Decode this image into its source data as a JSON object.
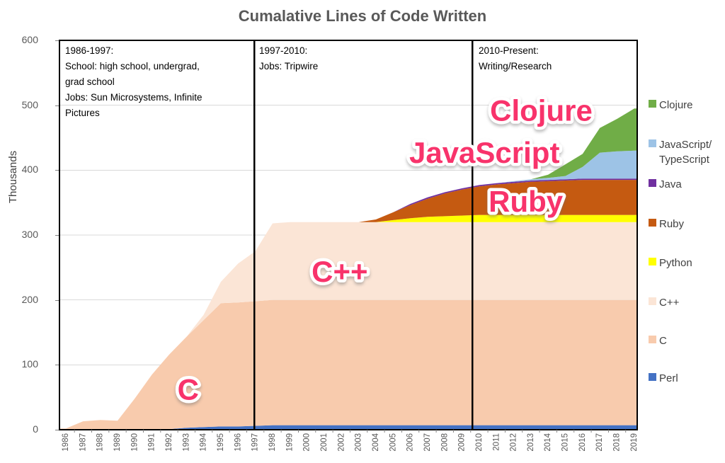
{
  "title": "Cumalative Lines of Code Written",
  "accent_pink": "#F8336B",
  "chart_data": {
    "type": "area",
    "stacked": true,
    "title": "Cumalative Lines of Code Written",
    "ylabel": "Thousands",
    "ylim": [
      0,
      600
    ],
    "y_ticks": [
      0,
      100,
      200,
      300,
      400,
      500,
      600
    ],
    "grid": "horizontal",
    "legend_position": "right",
    "x": [
      "1986",
      "1987",
      "1988",
      "1989",
      "1990",
      "1991",
      "1992",
      "1993",
      "1994",
      "1995",
      "1996",
      "1997",
      "1998",
      "1999",
      "2000",
      "2001",
      "2002",
      "2003",
      "2004",
      "2005",
      "2006",
      "2007",
      "2008",
      "2009",
      "2010",
      "2011",
      "2012",
      "2013",
      "2014",
      "2015",
      "2016",
      "2017",
      "2018",
      "2019"
    ],
    "series": [
      {
        "name": "Perl",
        "color": "#4472C4",
        "values": [
          0,
          0,
          0,
          0,
          0,
          0,
          1,
          3,
          4,
          5,
          5,
          6,
          7,
          7,
          7,
          7,
          7,
          7,
          7,
          7,
          7,
          7,
          7,
          7,
          7,
          7,
          7,
          7,
          7,
          7,
          7,
          7,
          7,
          7
        ]
      },
      {
        "name": "C",
        "color": "#F8CBAD",
        "values": [
          2,
          13,
          15,
          14,
          48,
          85,
          115,
          140,
          165,
          190,
          191,
          192,
          193,
          193,
          193,
          193,
          193,
          193,
          193,
          193,
          193,
          193,
          193,
          193,
          193,
          193,
          193,
          193,
          193,
          193,
          193,
          193,
          193,
          193
        ]
      },
      {
        "name": "C++",
        "color": "#FBE5D6",
        "values": [
          0,
          0,
          0,
          0,
          0,
          0,
          0,
          0,
          8,
          33,
          60,
          77,
          118,
          120,
          120,
          120,
          120,
          120,
          120,
          120,
          120,
          120,
          120,
          120,
          120,
          120,
          120,
          120,
          120,
          120,
          120,
          120,
          120,
          120
        ]
      },
      {
        "name": "Python",
        "color": "#FFFF00",
        "values": [
          0,
          0,
          0,
          0,
          0,
          0,
          0,
          0,
          0,
          0,
          0,
          0,
          0,
          0,
          0,
          0,
          0,
          0,
          0,
          3,
          6,
          8,
          9,
          10,
          11,
          11,
          11,
          11,
          11,
          11,
          11,
          11,
          11,
          11
        ]
      },
      {
        "name": "Ruby",
        "color": "#C55A11",
        "values": [
          0,
          0,
          0,
          0,
          0,
          0,
          0,
          0,
          0,
          0,
          0,
          0,
          0,
          0,
          0,
          0,
          0,
          0,
          4,
          12,
          20,
          28,
          35,
          40,
          44,
          47,
          49,
          51,
          52,
          53,
          54,
          54,
          54,
          54
        ]
      },
      {
        "name": "Java",
        "color": "#7030A0",
        "values": [
          0,
          0,
          0,
          0,
          0,
          0,
          0,
          0,
          0,
          0,
          0,
          0,
          0,
          0,
          0,
          0,
          0,
          0,
          0,
          0,
          2,
          2,
          2,
          2,
          2,
          2,
          2,
          2,
          2,
          2,
          2,
          2,
          2,
          2
        ]
      },
      {
        "name": "JavaScript/TypeScript",
        "color": "#9DC3E6",
        "values": [
          0,
          0,
          0,
          0,
          0,
          0,
          0,
          0,
          0,
          0,
          0,
          0,
          0,
          0,
          0,
          0,
          0,
          0,
          0,
          0,
          0,
          0,
          0,
          0,
          0,
          0,
          1,
          2,
          3,
          5,
          18,
          40,
          42,
          43
        ]
      },
      {
        "name": "Clojure",
        "color": "#70AD47",
        "values": [
          0,
          0,
          0,
          0,
          0,
          0,
          0,
          0,
          0,
          0,
          0,
          0,
          0,
          0,
          0,
          0,
          0,
          0,
          0,
          0,
          0,
          0,
          0,
          0,
          0,
          0,
          0,
          0,
          5,
          18,
          20,
          38,
          50,
          65
        ]
      }
    ],
    "legend": [
      {
        "label": "Clojure",
        "color": "#70AD47"
      },
      {
        "label": "JavaScript/",
        "label2": "TypeScript",
        "color": "#9DC3E6"
      },
      {
        "label": "Java",
        "color": "#7030A0"
      },
      {
        "label": "Ruby",
        "color": "#C55A11"
      },
      {
        "label": "Python",
        "color": "#FFFF00"
      },
      {
        "label": "C++",
        "color": "#FBE5D6"
      },
      {
        "label": "C",
        "color": "#F8CBAD"
      },
      {
        "label": "Perl",
        "color": "#4472C4"
      }
    ],
    "annotations": {
      "periods": [
        {
          "heading": "1986-1997:",
          "lines": [
            "School: high school, undergrad,",
            "grad school",
            "Jobs: Sun Microsystems, Infinite",
            "Pictures"
          ]
        },
        {
          "heading": "1997-2010:",
          "lines": [
            "Jobs: Tripwire"
          ]
        },
        {
          "heading": "2010-Present:",
          "lines": [
            "Writing/Research"
          ]
        }
      ],
      "divider_years": [
        1996.95,
        2009.6
      ],
      "labels": [
        {
          "text": "C",
          "year": 1993.1,
          "value": 62
        },
        {
          "text": "C++",
          "year": 2001.9,
          "value": 244
        },
        {
          "text": "Ruby",
          "year": 2012.7,
          "value": 352
        },
        {
          "text": "JavaScript",
          "year": 2010.3,
          "value": 427
        },
        {
          "text": "Clojure",
          "year": 2013.6,
          "value": 492
        }
      ]
    }
  }
}
